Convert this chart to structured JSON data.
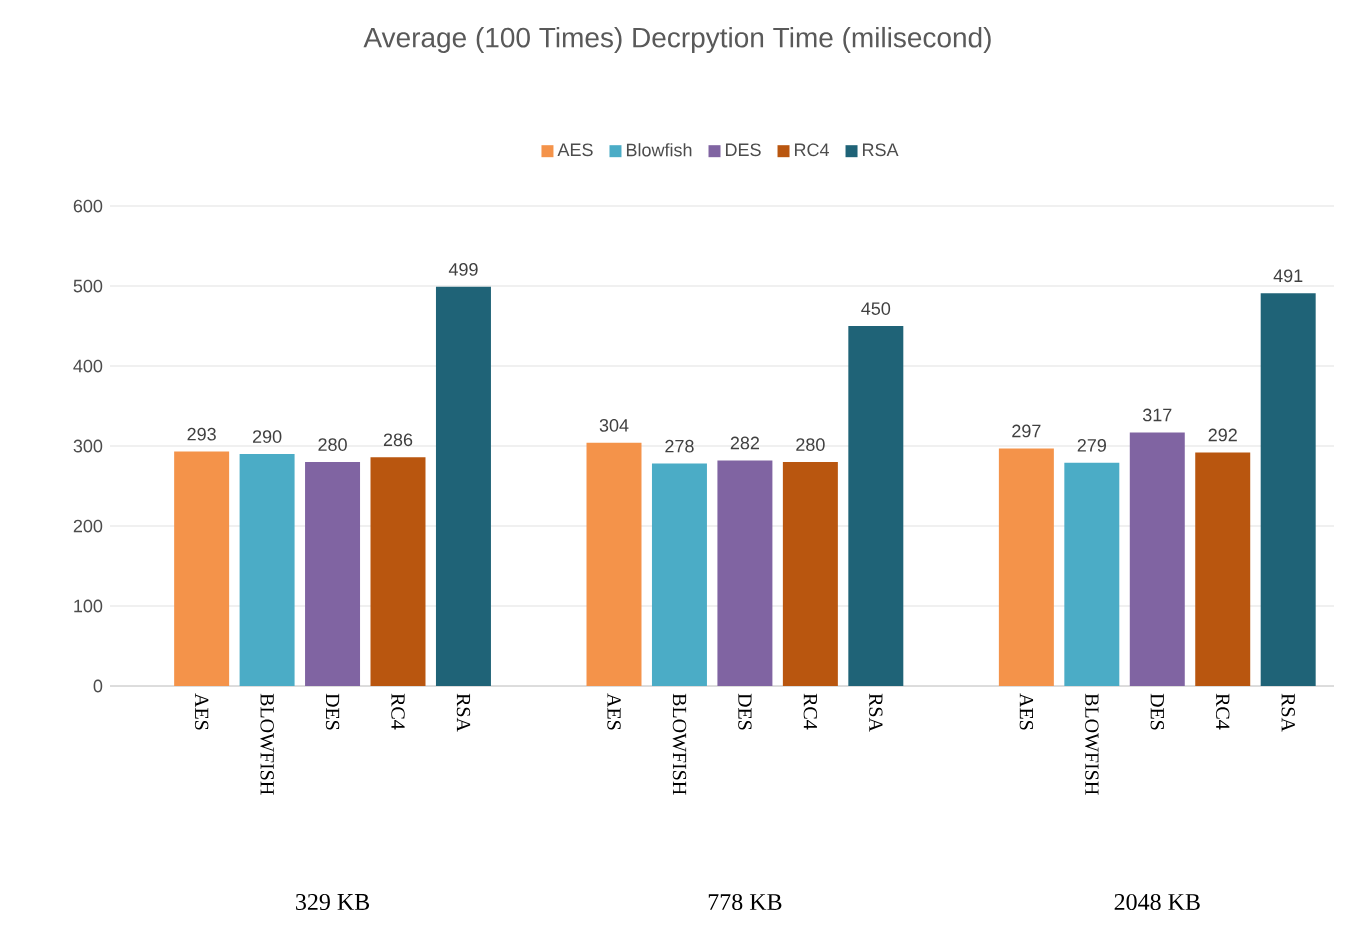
{
  "chart_data": {
    "type": "bar",
    "title": "Average (100 Times) Decrpytion Time (milisecond)",
    "categories": [
      "AES",
      "BLOWFISH",
      "DES",
      "RC4",
      "RSA",
      "AES",
      "BLOWFISH",
      "DES",
      "RC4",
      "RSA",
      "AES",
      "BLOWFISH",
      "DES",
      "RC4",
      "RSA"
    ],
    "series": [
      {
        "name": "AES",
        "color": "#f4934a",
        "values": [
          293,
          null,
          null,
          null,
          null,
          304,
          null,
          null,
          null,
          null,
          297,
          null,
          null,
          null,
          null
        ]
      },
      {
        "name": "Blowfish",
        "color": "#4bacc6",
        "values": [
          null,
          290,
          null,
          null,
          null,
          null,
          278,
          null,
          null,
          null,
          null,
          279,
          null,
          null,
          null
        ]
      },
      {
        "name": "DES",
        "color": "#8064a2",
        "values": [
          null,
          null,
          280,
          null,
          null,
          null,
          null,
          282,
          null,
          null,
          null,
          null,
          317,
          null,
          null
        ]
      },
      {
        "name": "RC4",
        "color": "#b9560f",
        "values": [
          null,
          null,
          null,
          286,
          null,
          null,
          null,
          null,
          280,
          null,
          null,
          null,
          null,
          292,
          null
        ]
      },
      {
        "name": "RSA",
        "color": "#1f6377",
        "values": [
          null,
          null,
          null,
          null,
          499,
          null,
          null,
          null,
          null,
          450,
          null,
          null,
          null,
          null,
          491
        ]
      }
    ],
    "ylim": [
      0,
      600
    ],
    "yticks": [
      0,
      100,
      200,
      300,
      400,
      500,
      600
    ],
    "grid": "y",
    "legend": "top",
    "data_labels": true,
    "annotations": [
      "329 KB",
      "778 KB",
      "2048 KB"
    ]
  }
}
